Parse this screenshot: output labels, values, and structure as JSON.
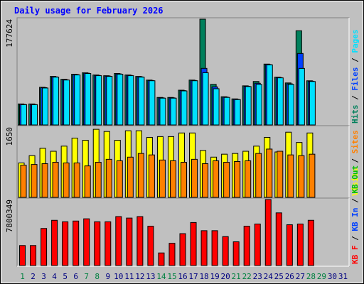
{
  "title": "Daily usage for February 2026",
  "legend_separator": " / ",
  "chart_data": [
    {
      "type": "bar",
      "ylim": [
        0,
        177624
      ],
      "yticks": [
        177624
      ],
      "series": [
        {
          "name": "Hits",
          "color": "#00805c",
          "values": [
            35300,
            35300,
            63300,
            81500,
            76700,
            85200,
            87600,
            84000,
            82700,
            86400,
            84000,
            81500,
            75400,
            46200,
            46200,
            58400,
            75400,
            177624,
            68152,
            47400,
            43800,
            65700,
            73020,
            102200,
            80300,
            70586,
            158210,
            74200,
            null,
            null,
            null
          ]
        },
        {
          "name": "Files",
          "color": "#0040ff",
          "values": [
            34600,
            34600,
            62600,
            80800,
            76000,
            84500,
            86900,
            83300,
            82000,
            85700,
            83300,
            80800,
            74700,
            45500,
            45500,
            57700,
            74700,
            95000,
            64000,
            46700,
            43100,
            65000,
            70000,
            101500,
            79600,
            69000,
            120000,
            73500,
            null,
            null,
            null
          ]
        },
        {
          "name": "Pages",
          "color": "#00e0ff",
          "values": [
            34076,
            34076,
            62067,
            80322,
            75454,
            83973,
            86407,
            82756,
            81539,
            85190,
            82756,
            80322,
            74237,
            45029,
            45029,
            57199,
            74237,
            87624,
            60850,
            46246,
            42595,
            64501,
            68152,
            101011,
            79105,
            68152,
            94926,
            73020,
            null,
            null,
            null
          ]
        }
      ]
    },
    {
      "type": "bar",
      "ylim": [
        0,
        1650
      ],
      "yticks": [
        1650
      ],
      "series": [
        {
          "name": "Visits",
          "color": "#ffff00",
          "values": [
            808,
            980,
            1152,
            1083,
            1203,
            1392,
            1341,
            1598,
            1547,
            1341,
            1564,
            1564,
            1409,
            1427,
            1427,
            1512,
            1512,
            1100,
            945,
            1014,
            1031,
            1083,
            1203,
            1409,
            1066,
            1530,
            1289,
            1512,
            null,
            null,
            null
          ]
        },
        {
          "name": "Sites",
          "color": "#ff8000",
          "values": [
            756,
            773,
            791,
            825,
            808,
            808,
            739,
            825,
            894,
            859,
            945,
            1031,
            997,
            877,
            859,
            825,
            894,
            791,
            859,
            825,
            842,
            859,
            1031,
            1134,
            1083,
            997,
            980,
            1014,
            null,
            null,
            null
          ]
        }
      ]
    },
    {
      "type": "bar",
      "ylim": [
        0,
        7800349
      ],
      "yticks": [
        7800349
      ],
      "series": [
        {
          "name": "KB F",
          "color": "#ff0000",
          "values": [
            2366000,
            2366000,
            4382000,
            5346000,
            5171000,
            5259000,
            5522000,
            5171000,
            5171000,
            5785000,
            5609000,
            5785000,
            4645000,
            1490000,
            2629000,
            3769000,
            5083000,
            4119000,
            4119000,
            3418000,
            2805000,
            4645000,
            4908000,
            7800349,
            6223000,
            4820000,
            4908000,
            5346000,
            null,
            null,
            null
          ]
        }
      ],
      "legend_extra": [
        {
          "name": "KB In",
          "color": "#0040ff"
        },
        {
          "name": "KB Out",
          "color": "#00c000"
        }
      ],
      "categories": [
        "1",
        "2",
        "3",
        "4",
        "5",
        "6",
        "7",
        "8",
        "9",
        "10",
        "11",
        "12",
        "13",
        "14",
        "15",
        "16",
        "17",
        "18",
        "19",
        "20",
        "21",
        "22",
        "23",
        "24",
        "25",
        "26",
        "27",
        "28",
        "29",
        "30",
        "31"
      ],
      "category_colors": [
        "#008040",
        "#000080",
        "#000080",
        "#000080",
        "#000080",
        "#000080",
        "#008040",
        "#008040",
        "#000080",
        "#000080",
        "#000080",
        "#000080",
        "#000080",
        "#008040",
        "#008040",
        "#000080",
        "#000080",
        "#000080",
        "#000080",
        "#000080",
        "#008040",
        "#008040",
        "#000080",
        "#000080",
        "#000080",
        "#000080",
        "#000080",
        "#008040",
        "#008040",
        "#000080",
        "#000080"
      ]
    }
  ]
}
